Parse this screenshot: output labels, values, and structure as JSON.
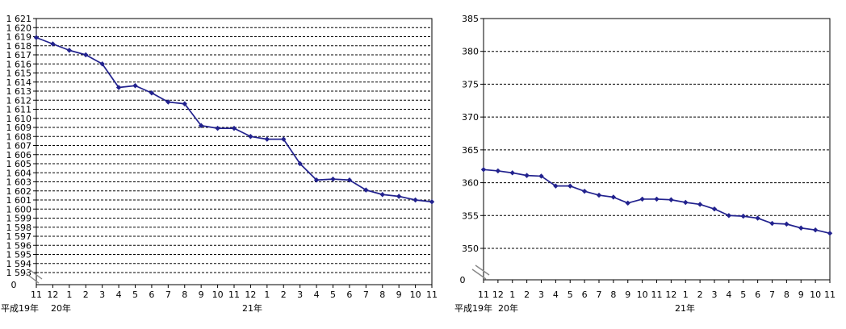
{
  "figure": {
    "background_color": "#ffffff",
    "series_color": "#22228e",
    "grid_color": "#000000",
    "axis_break_color": "#888888"
  },
  "chart_data": [
    {
      "id": "left",
      "type": "line",
      "title": "",
      "legend": "none",
      "grid": "horizontal-dashed",
      "axis_break": true,
      "ylim": [
        1593,
        1621
      ],
      "x_tick_labels": [
        "11",
        "12",
        "1",
        "2",
        "3",
        "4",
        "5",
        "6",
        "7",
        "8",
        "9",
        "10",
        "11",
        "12",
        "1",
        "2",
        "3",
        "4",
        "5",
        "6",
        "7",
        "8",
        "9",
        "10",
        "11"
      ],
      "era_labels": [
        "平成19年",
        "20年",
        "21年"
      ],
      "y_tick_labels": [
        "1 621",
        "1 620",
        "1 619",
        "1 618",
        "1 617",
        "1 616",
        "1 615",
        "1 614",
        "1 613",
        "1 612",
        "1 611",
        "1 610",
        "1 609",
        "1 608",
        "1 607",
        "1 606",
        "1 605",
        "1 604",
        "1 603",
        "1 602",
        "1 601",
        "1 600",
        "1 599",
        "1 598",
        "1 597",
        "1 596",
        "1 595",
        "1 594",
        "1 593"
      ],
      "y_zero_label": "0",
      "series": [
        {
          "name": "",
          "color": "#22228e",
          "values": [
            1618.9,
            1618.2,
            1617.5,
            1617.0,
            1616.0,
            1613.4,
            1613.6,
            1612.8,
            1611.8,
            1611.6,
            1609.2,
            1608.9,
            1608.9,
            1608.0,
            1607.7,
            1607.7,
            1605.0,
            1603.2,
            1603.3,
            1603.2,
            1602.1,
            1601.6,
            1601.4,
            1601.0,
            1600.8
          ]
        }
      ]
    },
    {
      "id": "right",
      "type": "line",
      "title": "",
      "legend": "none",
      "grid": "horizontal-dashed",
      "axis_break": true,
      "ylim": [
        350,
        385
      ],
      "x_tick_labels": [
        "11",
        "12",
        "1",
        "2",
        "3",
        "4",
        "5",
        "6",
        "7",
        "8",
        "9",
        "10",
        "11",
        "12",
        "1",
        "2",
        "3",
        "4",
        "5",
        "6",
        "7",
        "8",
        "9",
        "10",
        "11"
      ],
      "era_labels": [
        "平成19年",
        "20年",
        "21年"
      ],
      "y_tick_labels": [
        "385",
        "380",
        "375",
        "370",
        "365",
        "360",
        "355",
        "350"
      ],
      "y_zero_label": "0",
      "series": [
        {
          "name": "",
          "color": "#22228e",
          "values": [
            362.0,
            361.8,
            361.5,
            361.1,
            361.0,
            359.5,
            359.5,
            358.7,
            358.1,
            357.8,
            356.9,
            357.5,
            357.5,
            357.4,
            357.0,
            356.7,
            356.0,
            355.0,
            354.9,
            354.6,
            353.8,
            353.7,
            353.1,
            352.8,
            352.3
          ]
        }
      ]
    }
  ]
}
